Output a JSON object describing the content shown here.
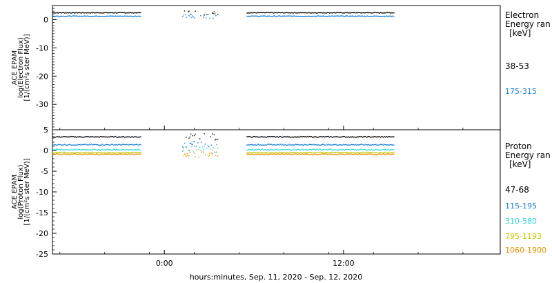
{
  "chart_data": [
    {
      "type": "scatter",
      "ylabel_lines": [
        "ACE EPAM",
        "log(Electron Flux)",
        "[1/(cm²s ster MeV)]"
      ],
      "ylim": [
        -39,
        5
      ],
      "yticks": [
        0,
        -10,
        -20,
        -30
      ],
      "legend_title": [
        "Electron",
        "Energy ran"
      ],
      "legend_unit": "[keV]",
      "series": [
        {
          "name": "38-53",
          "color": "#000000",
          "level": 2.6
        },
        {
          "name": "175-315",
          "color": "#1a7fd4",
          "level": 1.4
        }
      ]
    },
    {
      "type": "scatter",
      "ylabel_lines": [
        "ACE EPAM",
        "log(Proton Flux)",
        "[1/(cm²s ster MeV)]"
      ],
      "ylim": [
        -25,
        5
      ],
      "yticks": [
        5,
        0,
        -5,
        -10,
        -15,
        -20,
        -25
      ],
      "legend_title": [
        "Proton",
        "Energy ran"
      ],
      "legend_unit": "[keV]",
      "series": [
        {
          "name": "47-68",
          "color": "#000000",
          "level": 3.4
        },
        {
          "name": "115-195",
          "color": "#1a7fd4",
          "level": 1.5
        },
        {
          "name": "310-580",
          "color": "#33d6d6",
          "level": 0.3
        },
        {
          "name": "795-1193",
          "color": "#c8c800",
          "level": -0.4
        },
        {
          "name": "1060-1900",
          "color": "#e89000",
          "level": -0.8
        }
      ]
    }
  ],
  "x_axis": {
    "label": "hours:minutes, Sep. 11, 2020 - Sep. 12, 2020",
    "range_hours": [
      -7.5,
      22.5
    ],
    "ticks": [
      {
        "hours": 0,
        "label": "0:00"
      },
      {
        "hours": 12,
        "label": "12:00"
      }
    ],
    "data_segments_hours": [
      [
        -7.5,
        -1.6
      ],
      [
        1.2,
        3.6
      ],
      [
        5.5,
        15.4
      ]
    ]
  }
}
